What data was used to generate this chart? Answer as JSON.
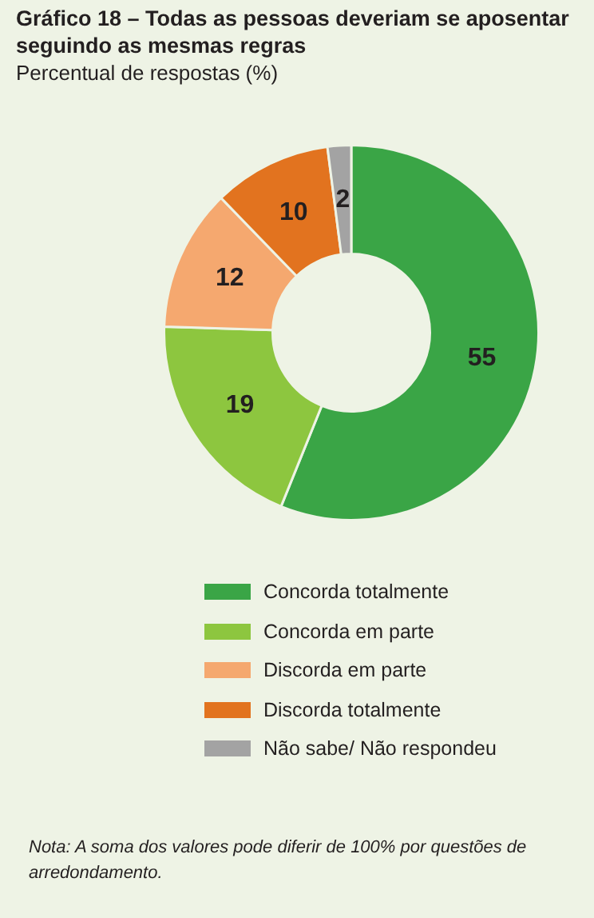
{
  "chart_data": {
    "type": "donut",
    "title": "Gráfico 18 – Todas as pessoas deveriam se aposentar seguindo as mesmas regras",
    "subtitle": "Percentual de respostas (%)",
    "categories": [
      "Concorda totalmente",
      "Concorda em parte",
      "Discorda em parte",
      "Discorda totalmente",
      "Não sabe/ Não respondeu"
    ],
    "values": [
      55,
      19,
      12,
      10,
      2
    ],
    "colors": [
      "#3aa546",
      "#8dc63f",
      "#f5a86f",
      "#e2731f",
      "#a3a3a3"
    ],
    "data_labels": true,
    "legend": "bottom",
    "annotations": [
      "Nota: A soma dos valores pode diferir de 100% por questões de arredondamento."
    ]
  }
}
